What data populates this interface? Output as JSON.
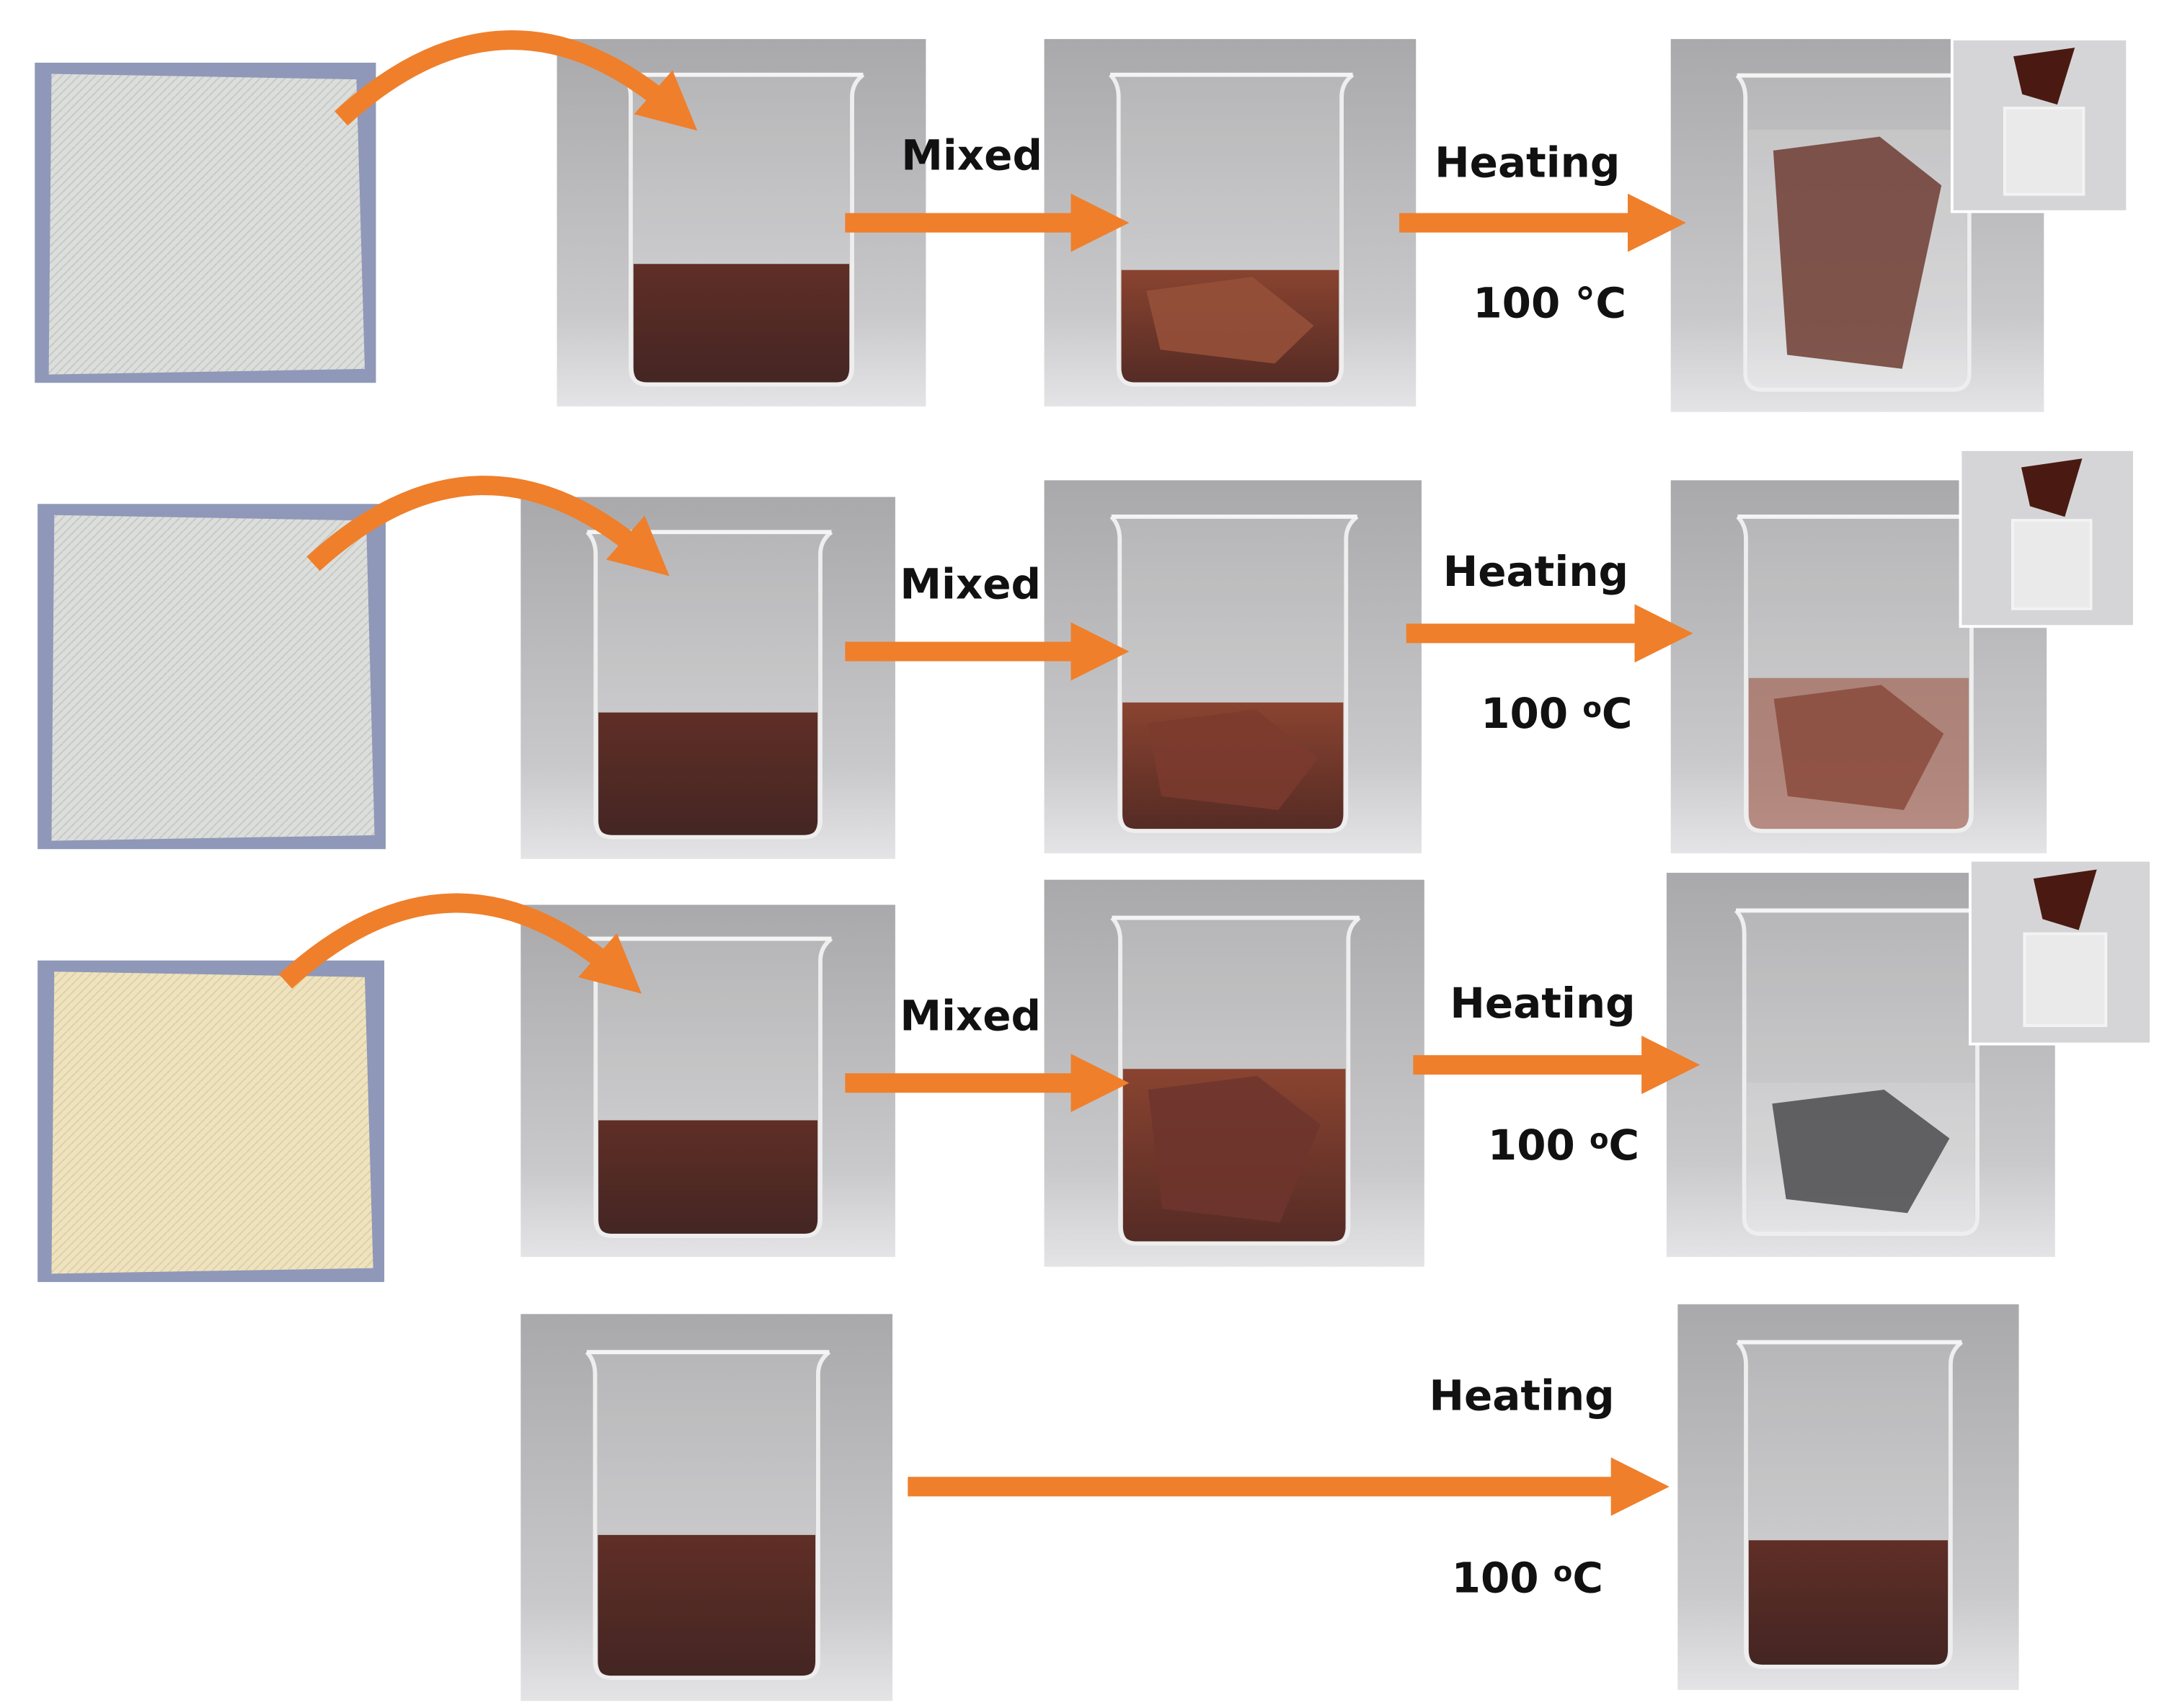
{
  "rows": [
    {
      "mixed": "Mixed",
      "heating": "Heating",
      "temperature": "100 °C"
    },
    {
      "mixed": "Mixed",
      "heating": "Heating",
      "temperature": {
        "number": "100 ",
        "degree": "o",
        "unit": "C"
      }
    },
    {
      "mixed": "Mixed",
      "heating": "Heating",
      "temperature": {
        "number": "100 ",
        "degree": "o",
        "unit": "C"
      }
    },
    {
      "heating": "Heating",
      "temperature": {
        "number": "100 ",
        "degree": "o",
        "unit": "C"
      }
    }
  ]
}
